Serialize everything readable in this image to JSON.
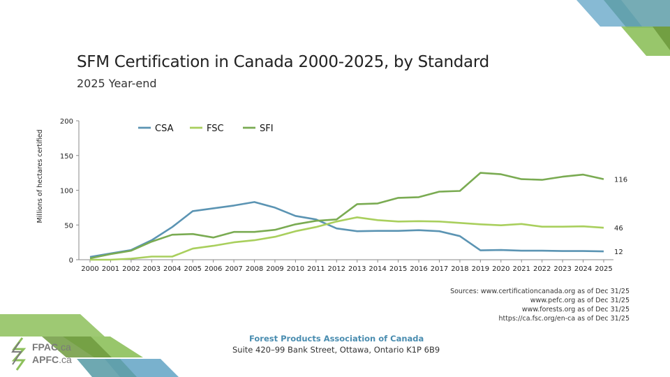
{
  "title": "SFM Certification in Canada 2000-2025, by Standard",
  "subtitle": "2025 Year-end",
  "sources": [
    "Sources: www.certificationcanada.org as of Dec 31/25",
    "www.pefc.org as of Dec 31/25",
    "www.forests.org as of Dec 31/25",
    "https://ca.fsc.org/en-ca as of Dec 31/25"
  ],
  "footer": {
    "org": "Forest Products Association of Canada",
    "address": "Suite 420–99 Bank Street, Ottawa, Ontario K1P 6B9",
    "logo_line1_a": "FPAC",
    "logo_line1_b": ".ca",
    "logo_line2_a": "APFC",
    "logo_line2_b": ".ca"
  },
  "colors": {
    "csa": "#5b94b3",
    "fsc": "#a9cf5d",
    "sfi": "#7aab52",
    "accent_blue": "#6aa8c8",
    "accent_green": "#8dc05b"
  },
  "chart_data": {
    "type": "line",
    "title": "SFM Certification in Canada 2000-2025, by Standard",
    "ylabel": "Millions of hectares certified",
    "xlabel": "",
    "ylim": [
      0,
      200
    ],
    "yticks": [
      0,
      50,
      100,
      150,
      200
    ],
    "grid": false,
    "legend": "top-left",
    "x": [
      "2000",
      "2001",
      "2002",
      "2003",
      "2004",
      "2005",
      "2006",
      "2007",
      "2008",
      "2009",
      "2010",
      "2011",
      "2012",
      "2013",
      "2014",
      "2015",
      "2016",
      "2017",
      "2018",
      "2019",
      "2020",
      "2021",
      "2022",
      "2023",
      "2024",
      "2025"
    ],
    "series": [
      {
        "name": "CSA",
        "key": "csa",
        "end_label": "12",
        "values": [
          4,
          9,
          14,
          28,
          47,
          70,
          74,
          78,
          83,
          75,
          63,
          58,
          45,
          41,
          41.5,
          41.5,
          42.5,
          41,
          34,
          13.5,
          14,
          13,
          13,
          12.5,
          12.5,
          12
        ]
      },
      {
        "name": "FSC",
        "key": "fsc",
        "end_label": "46",
        "values": [
          0,
          0,
          1.5,
          4.5,
          4.5,
          16,
          20,
          25,
          28,
          33,
          41,
          47,
          55,
          61,
          57,
          55,
          55.5,
          55,
          53,
          51,
          49.5,
          51.5,
          47.5,
          47.5,
          48,
          46
        ]
      },
      {
        "name": "SFI",
        "key": "sfi",
        "end_label": "116",
        "values": [
          2,
          8,
          13,
          26,
          36,
          37,
          32,
          40,
          40,
          43,
          51,
          56,
          58,
          80,
          81,
          89,
          90,
          98,
          99,
          125,
          123,
          116,
          115,
          119.5,
          122.5,
          116
        ]
      }
    ]
  }
}
